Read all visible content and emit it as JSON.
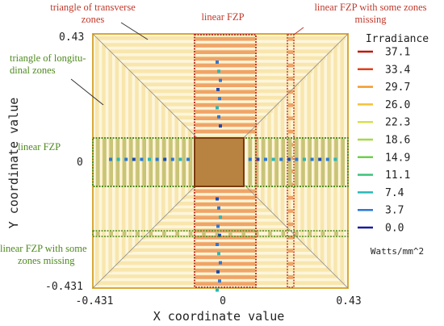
{
  "chart_data": {
    "type": "heatmap",
    "xlabel": "X coordinate value",
    "ylabel": "Y coordinate value",
    "x_ticks": [
      "-0.431",
      "0",
      "0.43"
    ],
    "y_ticks": [
      "0.43",
      "0",
      "-0.431"
    ],
    "xlim": [
      -0.431,
      0.43
    ],
    "ylim": [
      -0.431,
      0.43
    ],
    "colorbar": {
      "title": "Irradiance",
      "unit": "Watts/mm^2",
      "values": [
        "37.1",
        "33.4",
        "29.7",
        "26.0",
        "22.3",
        "18.6",
        "14.9",
        "11.1",
        "7.4",
        "3.7",
        "0.0"
      ],
      "colors": [
        "#c0180e",
        "#e0401a",
        "#f29a2e",
        "#f2c23a",
        "#d8e04a",
        "#a8d84a",
        "#6ecf4a",
        "#3ec27a",
        "#28b8b8",
        "#2a78d8",
        "#1a1aa0"
      ]
    },
    "annotations": {
      "triangle_transverse": [
        "triangle of transverse",
        "zones"
      ],
      "triangle_longitudinal": [
        "triangle of longitu-",
        "dinal zones"
      ],
      "linear_fzp_top": "linear FZP",
      "linear_fzp_missing_top": [
        "linear FZP with some zones",
        "missing"
      ],
      "linear_fzp_left": "linear FZP",
      "linear_fzp_missing_left": [
        "linear FZP with some",
        "zones missing"
      ]
    },
    "colors": {
      "stripe_light": "#f8e6ae",
      "stripe_base": "#fdf6dc",
      "stripe_orange": "#f0a468",
      "stripe_olive": "#c8c478",
      "center": "#b88240",
      "red_box": "#c0392b",
      "green_box": "#4f8a1f"
    }
  }
}
